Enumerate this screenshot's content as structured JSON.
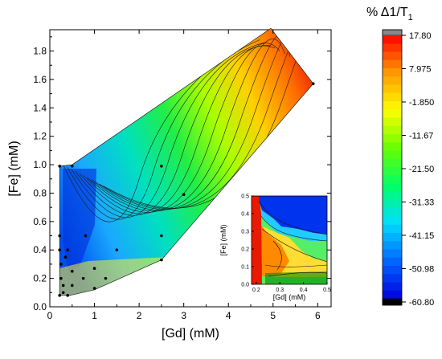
{
  "chart_data": {
    "type": "heatmap",
    "main": {
      "xlabel": "[Gd] (mM)",
      "ylabel": "[Fe] (mM)",
      "xlim": [
        0,
        6.3
      ],
      "ylim": [
        0,
        1.95
      ],
      "xticks": [
        "0",
        "1",
        "2",
        "3",
        "4",
        "5",
        "6"
      ],
      "yticks": [
        "0.0",
        "0.2",
        "0.4",
        "0.6",
        "0.8",
        "1.0",
        "1.2",
        "1.4",
        "1.6",
        "1.8"
      ],
      "hull": [
        [
          0.22,
          0.08
        ],
        [
          0.45,
          0.08
        ],
        [
          1.0,
          0.12
        ],
        [
          2.5,
          0.33
        ],
        [
          5.9,
          1.57
        ],
        [
          4.95,
          1.96
        ],
        [
          0.5,
          1.0
        ],
        [
          0.22,
          0.99
        ]
      ],
      "points": [
        [
          0.22,
          0.99
        ],
        [
          0.5,
          0.99
        ],
        [
          0.22,
          0.5
        ],
        [
          0.22,
          0.4
        ],
        [
          0.25,
          0.3
        ],
        [
          0.25,
          0.2
        ],
        [
          0.3,
          0.1
        ],
        [
          0.22,
          0.08
        ],
        [
          0.4,
          0.08
        ],
        [
          0.4,
          0.4
        ],
        [
          0.5,
          0.25
        ],
        [
          0.5,
          0.15
        ],
        [
          0.75,
          0.2
        ],
        [
          0.8,
          0.5
        ],
        [
          1.0,
          0.27
        ],
        [
          1.0,
          0.13
        ],
        [
          1.25,
          0.2
        ],
        [
          1.5,
          0.4
        ],
        [
          2.5,
          0.99
        ],
        [
          2.5,
          0.5
        ],
        [
          2.5,
          0.33
        ],
        [
          3.0,
          0.79
        ],
        [
          5.9,
          1.57
        ],
        [
          0.35,
          0.35
        ],
        [
          0.3,
          0.15
        ]
      ]
    },
    "inset": {
      "xlabel": "[Gd] (mM)",
      "ylabel": "[Fe] (mM)",
      "xlim": [
        0.18,
        0.5
      ],
      "ylim": [
        0,
        0.5
      ],
      "xticks": [
        "0.2",
        "0.3",
        "0.4",
        "0.5"
      ],
      "yticks": [
        "0.0",
        "0.1",
        "0.2",
        "0.3",
        "0.4",
        "0.5"
      ]
    },
    "colorbar": {
      "title": "% Δ1/T",
      "title_sub": "1",
      "ticks": [
        "17.80",
        "7.975",
        "-1.850",
        "-11.67",
        "-21.50",
        "-31.33",
        "-41.15",
        "-50.98",
        "-60.80"
      ],
      "min": -60.8,
      "max": 17.8,
      "stops": [
        "#0000dd",
        "#0066ff",
        "#00ddff",
        "#00ff66",
        "#66ff00",
        "#ffff00",
        "#ff9900",
        "#ff0000"
      ],
      "over_color": "#888888",
      "under_color": "#000000"
    }
  }
}
